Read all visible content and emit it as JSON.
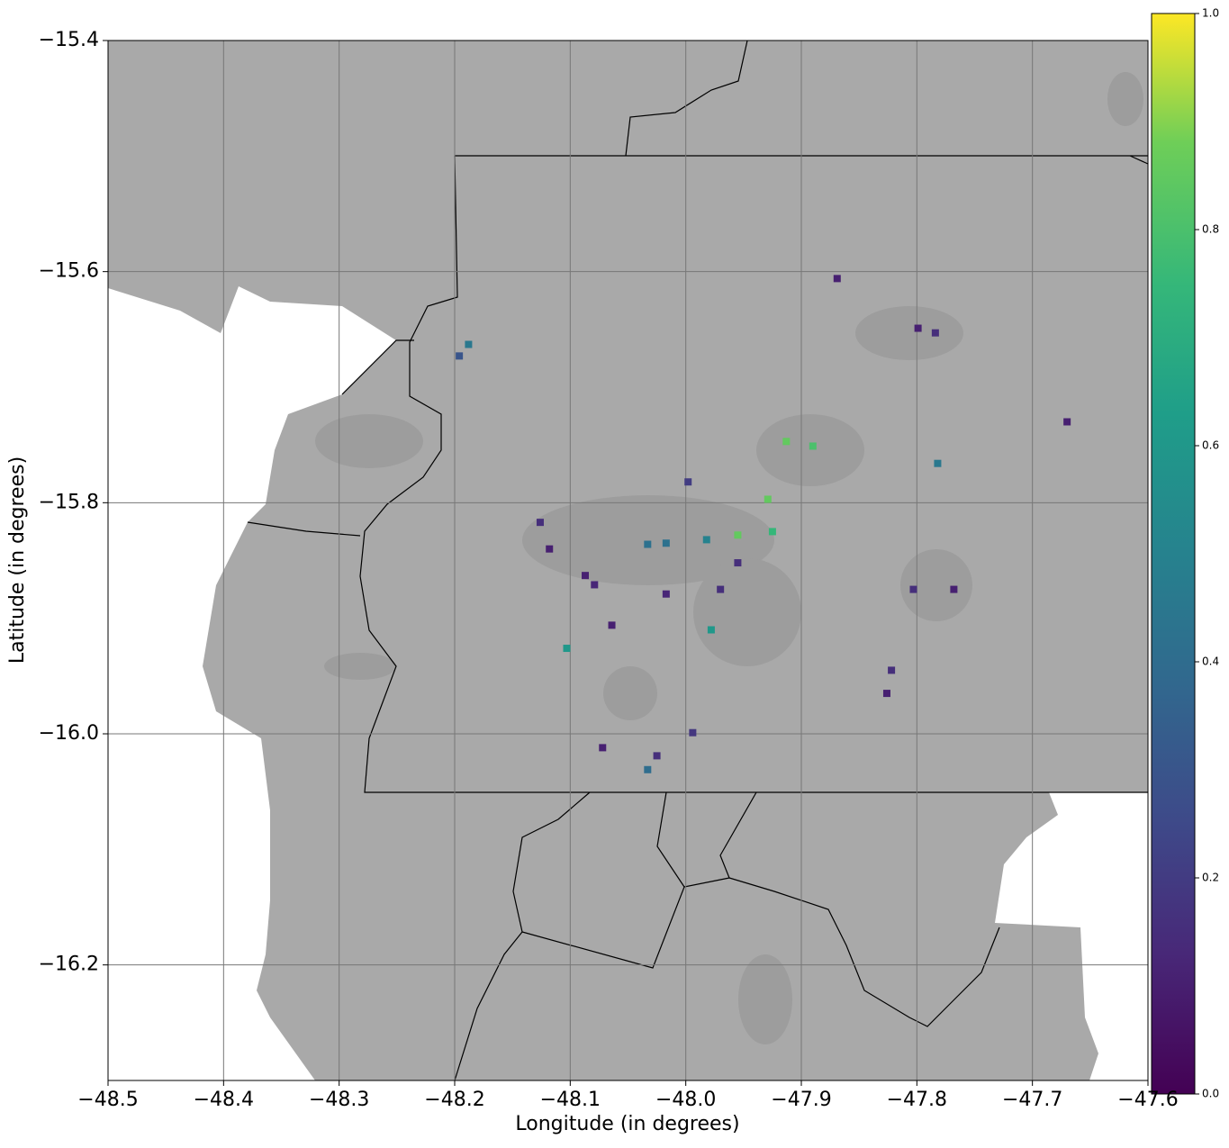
{
  "chart_data": {
    "type": "scatter",
    "x_label": "Longitude (in degrees)",
    "y_label": "Latitude (in degrees)",
    "xlim": [
      -48.5,
      -47.6
    ],
    "ylim": [
      -16.3,
      -15.4
    ],
    "xticks": [
      {
        "value": -48.5,
        "label": "−48.5"
      },
      {
        "value": -48.4,
        "label": "−48.4"
      },
      {
        "value": -48.3,
        "label": "−48.3"
      },
      {
        "value": -48.2,
        "label": "−48.2"
      },
      {
        "value": -48.1,
        "label": "−48.1"
      },
      {
        "value": -48.0,
        "label": "−48.0"
      },
      {
        "value": -47.9,
        "label": "−47.9"
      },
      {
        "value": -47.8,
        "label": "−47.8"
      },
      {
        "value": -47.7,
        "label": "−47.7"
      },
      {
        "value": -47.6,
        "label": "−47.6"
      }
    ],
    "yticks": [
      {
        "value": -15.4,
        "label": "−15.4"
      },
      {
        "value": -15.6,
        "label": "−15.6"
      },
      {
        "value": -15.8,
        "label": "−15.8"
      },
      {
        "value": -16.0,
        "label": "−16.0"
      },
      {
        "value": -16.2,
        "label": "−16.2"
      }
    ],
    "grid": true,
    "colorbar": {
      "lim": [
        0,
        1
      ],
      "ticks": [
        {
          "value": 0,
          "label": "0.0"
        },
        0.2,
        0.4,
        0.6,
        0.8,
        {
          "value": 1,
          "label": "1.0"
        }
      ],
      "colormap": "viridis"
    },
    "x": [
      -48.033,
      -48.017,
      -47.982,
      -47.955,
      -47.913,
      -47.89,
      -47.929,
      -47.925,
      -47.782,
      -47.799,
      -47.784,
      -48.087,
      -48.079,
      -48.118,
      -48.126,
      -48.064,
      -48.017,
      -47.998,
      -47.994,
      -48.025,
      -48.033,
      -48.072,
      -47.822,
      -47.826,
      -47.768,
      -47.803,
      -48.196,
      -48.188,
      -48.103,
      -47.67,
      -47.869,
      -47.978,
      -47.97,
      -47.955
    ],
    "y": [
      -15.836,
      -15.835,
      -15.832,
      -15.828,
      -15.747,
      -15.751,
      -15.797,
      -15.825,
      -15.766,
      -15.649,
      -15.653,
      -15.863,
      -15.871,
      -15.84,
      -15.817,
      -15.906,
      -15.879,
      -15.782,
      -15.999,
      -16.019,
      -16.031,
      -16.012,
      -15.945,
      -15.965,
      -15.875,
      -15.875,
      -15.673,
      -15.663,
      -15.926,
      -15.73,
      -15.606,
      -15.91,
      -15.875,
      -15.852
    ],
    "values": [
      0.42,
      0.42,
      0.5,
      0.85,
      0.85,
      0.8,
      0.85,
      0.75,
      0.45,
      0.1,
      0.15,
      0.1,
      0.12,
      0.1,
      0.15,
      0.1,
      0.12,
      0.2,
      0.18,
      0.15,
      0.4,
      0.1,
      0.15,
      0.1,
      0.1,
      0.15,
      0.3,
      0.45,
      0.6,
      0.1,
      0.1,
      0.6,
      0.15,
      0.15
    ]
  }
}
